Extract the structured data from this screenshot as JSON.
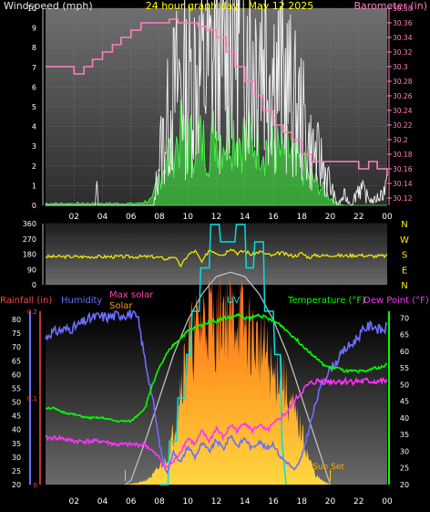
{
  "header": {
    "left": "Windspeed (mph)",
    "center": "24 hour graph day : May 12 2025",
    "right": "Barometer (in)"
  },
  "colors": {
    "wind": "#ffffff",
    "gust": "#f0f0f0",
    "avg_wind": "#44ff44",
    "barometer": "#ff80c0",
    "direction": "#ffee00",
    "rain_axis": "#ff4444",
    "humidity": "#6d6dff",
    "max_solar": "#ff44aa",
    "solar": "#ff9922",
    "uv": "#00e0e0",
    "temperature": "#00ff00",
    "dewpoint": "#ff33ff",
    "title_yellow": "#ffff00",
    "sunset_marker": "#ffcc00"
  },
  "chart_data": [
    {
      "type": "line",
      "name": "wind-barometer",
      "xlim": [
        0,
        24
      ],
      "x_ticks": [
        "02",
        "04",
        "06",
        "08",
        "10",
        "12",
        "14",
        "16",
        "18",
        "20",
        "22",
        "00"
      ],
      "x_tick_hours": [
        2,
        4,
        6,
        8,
        10,
        12,
        14,
        16,
        18,
        20,
        22,
        24
      ],
      "y_left_label": "Windspeed (mph)",
      "y_left_lim": [
        0,
        10
      ],
      "y_left_ticks": [
        0,
        1,
        2,
        3,
        4,
        5,
        6,
        7,
        8,
        9,
        10
      ],
      "y_right_label": "Barometer (in)",
      "y_right_lim": [
        30.11,
        30.38
      ],
      "y_right_ticks": [
        "30.12",
        "30.14",
        "30.16",
        "30.18",
        "30.2",
        "30.22",
        "30.24",
        "30.26",
        "30.28",
        "30.3",
        "30.32",
        "30.34",
        "30.36",
        "30.38"
      ],
      "series": [
        {
          "key": "barometer",
          "x": [
            0,
            0.7,
            1.3,
            2.0,
            2.7,
            3.3,
            4.0,
            4.7,
            5.3,
            6.0,
            6.7,
            7.3,
            8.0,
            8.7,
            9.3,
            10.0,
            10.7,
            11.3,
            12.0,
            12.7,
            13.3,
            14.0,
            14.7,
            15.3,
            16.0,
            16.7,
            17.3,
            18.0,
            18.7,
            19.3,
            20.0,
            20.7,
            21.3,
            22.0,
            22.7,
            23.3,
            24.0
          ],
          "values": [
            30.3,
            30.3,
            30.3,
            30.29,
            30.3,
            30.31,
            30.32,
            30.33,
            30.34,
            30.35,
            30.36,
            30.36,
            30.36,
            30.365,
            30.36,
            30.36,
            30.355,
            30.35,
            30.34,
            30.32,
            30.3,
            30.28,
            30.26,
            30.24,
            30.22,
            30.21,
            30.2,
            30.18,
            30.17,
            30.17,
            30.17,
            30.17,
            30.17,
            30.16,
            30.17,
            30.16,
            30.15
          ]
        },
        {
          "key": "wind_gust",
          "x": [
            0,
            3.5,
            3.6,
            3.7,
            7.6,
            8.0,
            8.5,
            9.0,
            9.5,
            10.0,
            10.5,
            11.0,
            11.5,
            12.0,
            12.5,
            13.0,
            13.3,
            13.6,
            14.0,
            14.5,
            15.0,
            15.5,
            16.0,
            16.5,
            17.0,
            17.5,
            18.0,
            18.5,
            19.0,
            19.5,
            20.0,
            20.5,
            21.0,
            21.5,
            22.0,
            22.5,
            23.0,
            23.5,
            24.0
          ],
          "values": [
            0,
            0,
            1.1,
            0,
            0,
            2.5,
            4,
            5.5,
            6.5,
            5.8,
            7,
            6.5,
            6.8,
            8,
            7,
            9,
            10,
            8.3,
            9.5,
            7.5,
            8.5,
            8,
            7,
            6.5,
            6,
            5,
            4.5,
            3,
            2.5,
            2,
            1,
            0,
            0.5,
            0,
            1,
            0.5,
            0.2,
            0.5,
            1
          ]
        },
        {
          "key": "wind_avg",
          "x": [
            0,
            6.5,
            7.5,
            8.0,
            8.5,
            9.0,
            9.5,
            10.0,
            10.5,
            11.0,
            11.5,
            12.0,
            12.5,
            13.0,
            13.5,
            14.0,
            14.5,
            15.0,
            15.5,
            16.0,
            16.5,
            17.0,
            17.5,
            18.0,
            18.5,
            19.0,
            19.5,
            20.0,
            20.5,
            21.0,
            22.0,
            23.0,
            24.0
          ],
          "values": [
            0.1,
            0.1,
            0.3,
            1.5,
            2.5,
            3,
            3.5,
            3,
            3.5,
            3.2,
            3,
            3.8,
            3.5,
            4,
            3.5,
            3.5,
            3.2,
            3.5,
            3,
            3.2,
            2.5,
            2.8,
            2.2,
            2,
            1.5,
            1.2,
            0.8,
            0.4,
            0.1,
            0,
            0,
            0,
            0
          ]
        }
      ]
    },
    {
      "type": "line",
      "name": "wind-direction",
      "xlim": [
        0,
        24
      ],
      "y_lim": [
        0,
        360
      ],
      "y_ticks": [
        0,
        90,
        180,
        270,
        360
      ],
      "compass_labels": [
        "N",
        "W",
        "S",
        "E",
        "N"
      ],
      "series": [
        {
          "key": "direction",
          "x": [
            0,
            2,
            4,
            6,
            6.5,
            7,
            7.5,
            8,
            8.5,
            9,
            9.5,
            10,
            10.5,
            11,
            11.5,
            12,
            12.5,
            13,
            13.5,
            14,
            14.5,
            15,
            15.5,
            16,
            16.5,
            17,
            17.5,
            18,
            18.5,
            19,
            19.5,
            20,
            21,
            22,
            23,
            24
          ],
          "values": [
            165,
            165,
            165,
            165,
            165,
            165,
            165,
            160,
            150,
            170,
            110,
            175,
            200,
            130,
            210,
            190,
            175,
            220,
            185,
            200,
            175,
            195,
            180,
            170,
            190,
            175,
            170,
            185,
            160,
            175,
            170,
            175,
            170,
            175,
            168,
            170
          ]
        }
      ]
    },
    {
      "type": "line",
      "name": "temperature-humidity-solar",
      "xlim": [
        0,
        24
      ],
      "x_ticks": [
        "02",
        "04",
        "06",
        "08",
        "10",
        "12",
        "14",
        "16",
        "18",
        "20",
        "22",
        "00"
      ],
      "x_tick_hours": [
        2,
        4,
        6,
        8,
        10,
        12,
        14,
        16,
        18,
        20,
        22,
        24
      ],
      "legend": [
        "Rainfall (in)",
        "Humidity",
        "Max solar",
        "Solar",
        "UV",
        "Temperature (°F)",
        "Dew Point (°F)"
      ],
      "rain_lim": [
        0,
        0.2
      ],
      "rain_ticks": [
        "0",
        "0.1",
        "0.2"
      ],
      "humidity_lim": [
        20,
        83
      ],
      "humidity_ticks": [
        20,
        25,
        30,
        35,
        40,
        45,
        50,
        55,
        60,
        65,
        70,
        75,
        80
      ],
      "temp_lim": [
        20,
        72
      ],
      "temp_ticks": [
        20,
        25,
        30,
        35,
        40,
        45,
        50,
        55,
        60,
        65,
        70
      ],
      "sunset_label": "Sun Set",
      "sunset_hour": 20.0,
      "sunrise_hour": 5.6,
      "series": [
        {
          "key": "humidity",
          "x": [
            0,
            0.3,
            1.0,
            2.0,
            3.0,
            3.5,
            4.5,
            5.5,
            6.0,
            6.5,
            7.0,
            7.5,
            8.0,
            8.3,
            8.5,
            9.0,
            9.5,
            10.0,
            10.5,
            11.0,
            11.5,
            12.0,
            12.5,
            13.0,
            13.5,
            14.0,
            14.5,
            15.0,
            15.5,
            16.0,
            16.5,
            17.0,
            17.5,
            18.0,
            18.5,
            19.0,
            19.5,
            20.0,
            20.5,
            21.0,
            21.5,
            22.0,
            22.5,
            23.0,
            23.5,
            24.0
          ],
          "values": [
            73,
            75,
            76,
            77,
            80,
            81,
            81,
            82,
            82,
            80,
            65,
            52,
            35,
            28,
            24,
            32,
            28,
            34,
            30,
            35,
            32,
            36,
            33,
            38,
            34,
            37,
            33,
            36,
            33,
            35,
            30,
            28,
            25,
            30,
            40,
            50,
            58,
            62,
            65,
            69,
            71,
            74,
            77,
            78,
            76,
            77
          ]
        },
        {
          "key": "temperature",
          "x": [
            0,
            0.5,
            1.0,
            2.0,
            3.0,
            4.0,
            5.0,
            6.0,
            6.5,
            7.0,
            7.5,
            8.0,
            8.5,
            9.0,
            9.5,
            10.0,
            10.5,
            11.0,
            11.5,
            12.0,
            12.5,
            13.0,
            13.5,
            14.0,
            14.5,
            15.0,
            15.5,
            16.0,
            16.5,
            17.0,
            17.5,
            18.0,
            18.5,
            19.0,
            19.5,
            20.0,
            20.5,
            21.0,
            21.5,
            22.0,
            22.5,
            23.0,
            23.5,
            24.0
          ],
          "values": [
            43,
            43,
            42,
            41,
            40,
            40,
            39,
            39,
            41,
            43,
            50,
            55,
            59,
            62,
            64,
            66,
            67,
            68,
            69,
            69,
            70,
            70,
            71,
            70,
            70,
            71,
            70,
            69,
            68,
            66,
            64,
            62,
            60,
            58,
            56,
            55,
            55,
            54,
            54,
            54,
            54,
            55,
            55,
            56
          ]
        },
        {
          "key": "dewpoint",
          "x": [
            0,
            1.0,
            2.0,
            3.0,
            4.0,
            5.0,
            6.0,
            7.0,
            7.5,
            8.0,
            8.5,
            9.0,
            9.5,
            10.0,
            10.5,
            11.0,
            11.5,
            12.0,
            12.5,
            13.0,
            13.5,
            14.0,
            14.5,
            15.0,
            15.5,
            16.0,
            16.5,
            17.0,
            17.5,
            18.0,
            18.5,
            19.0,
            20.0,
            21.0,
            22.0,
            23.0,
            24.0
          ],
          "values": [
            34,
            34,
            33,
            33,
            33,
            32,
            32,
            32,
            30,
            28,
            25,
            27,
            30,
            34,
            32,
            36,
            33,
            37,
            34,
            38,
            36,
            39,
            36,
            38,
            36,
            38,
            40,
            42,
            45,
            48,
            50,
            51,
            51,
            51,
            51,
            51,
            51
          ]
        },
        {
          "key": "max_solar",
          "x": [
            5.6,
            6.0,
            7.0,
            8.0,
            9.0,
            10.0,
            11.0,
            12.0,
            13.0,
            14.0,
            15.0,
            16.0,
            17.0,
            18.0,
            19.0,
            20.0
          ],
          "values": [
            0,
            0.005,
            0.05,
            0.1,
            0.15,
            0.19,
            0.22,
            0.24,
            0.245,
            0.24,
            0.22,
            0.19,
            0.15,
            0.1,
            0.05,
            0
          ]
        },
        {
          "key": "solar",
          "x": [
            5.6,
            6.5,
            7.0,
            7.5,
            8.0,
            8.5,
            9.0,
            9.5,
            10.0,
            10.5,
            11.0,
            11.5,
            12.0,
            12.5,
            13.0,
            13.5,
            14.0,
            14.5,
            15.0,
            15.5,
            16.0,
            16.5,
            17.0,
            17.5,
            18.0,
            18.5,
            19.0,
            19.5,
            20.0
          ],
          "values": [
            0,
            0.002,
            0.005,
            0.01,
            0.02,
            0.03,
            0.06,
            0.12,
            0.16,
            0.17,
            0.19,
            0.2,
            0.18,
            0.21,
            0.19,
            0.2,
            0.18,
            0.17,
            0.16,
            0.15,
            0.12,
            0.14,
            0.1,
            0.08,
            0.06,
            0.03,
            0.01,
            0.004,
            0
          ]
        },
        {
          "key": "uv",
          "x": [
            8.0,
            8.6,
            8.7,
            9.2,
            9.3,
            9.8,
            9.9,
            10.2,
            10.3,
            10.8,
            10.9,
            11.5,
            11.6,
            12.2,
            12.3,
            13.3,
            13.4,
            14.0,
            14.1,
            14.6,
            14.7,
            15.3,
            15.4,
            16.0,
            16.1,
            16.5,
            16.6,
            16.9
          ],
          "values": [
            0,
            0,
            0.05,
            0.05,
            0.1,
            0.1,
            0.15,
            0.15,
            0.2,
            0.2,
            0.25,
            0.25,
            0.3,
            0.3,
            0.28,
            0.28,
            0.3,
            0.3,
            0.25,
            0.25,
            0.28,
            0.28,
            0.2,
            0.2,
            0.15,
            0.15,
            0.05,
            0
          ]
        }
      ]
    }
  ]
}
